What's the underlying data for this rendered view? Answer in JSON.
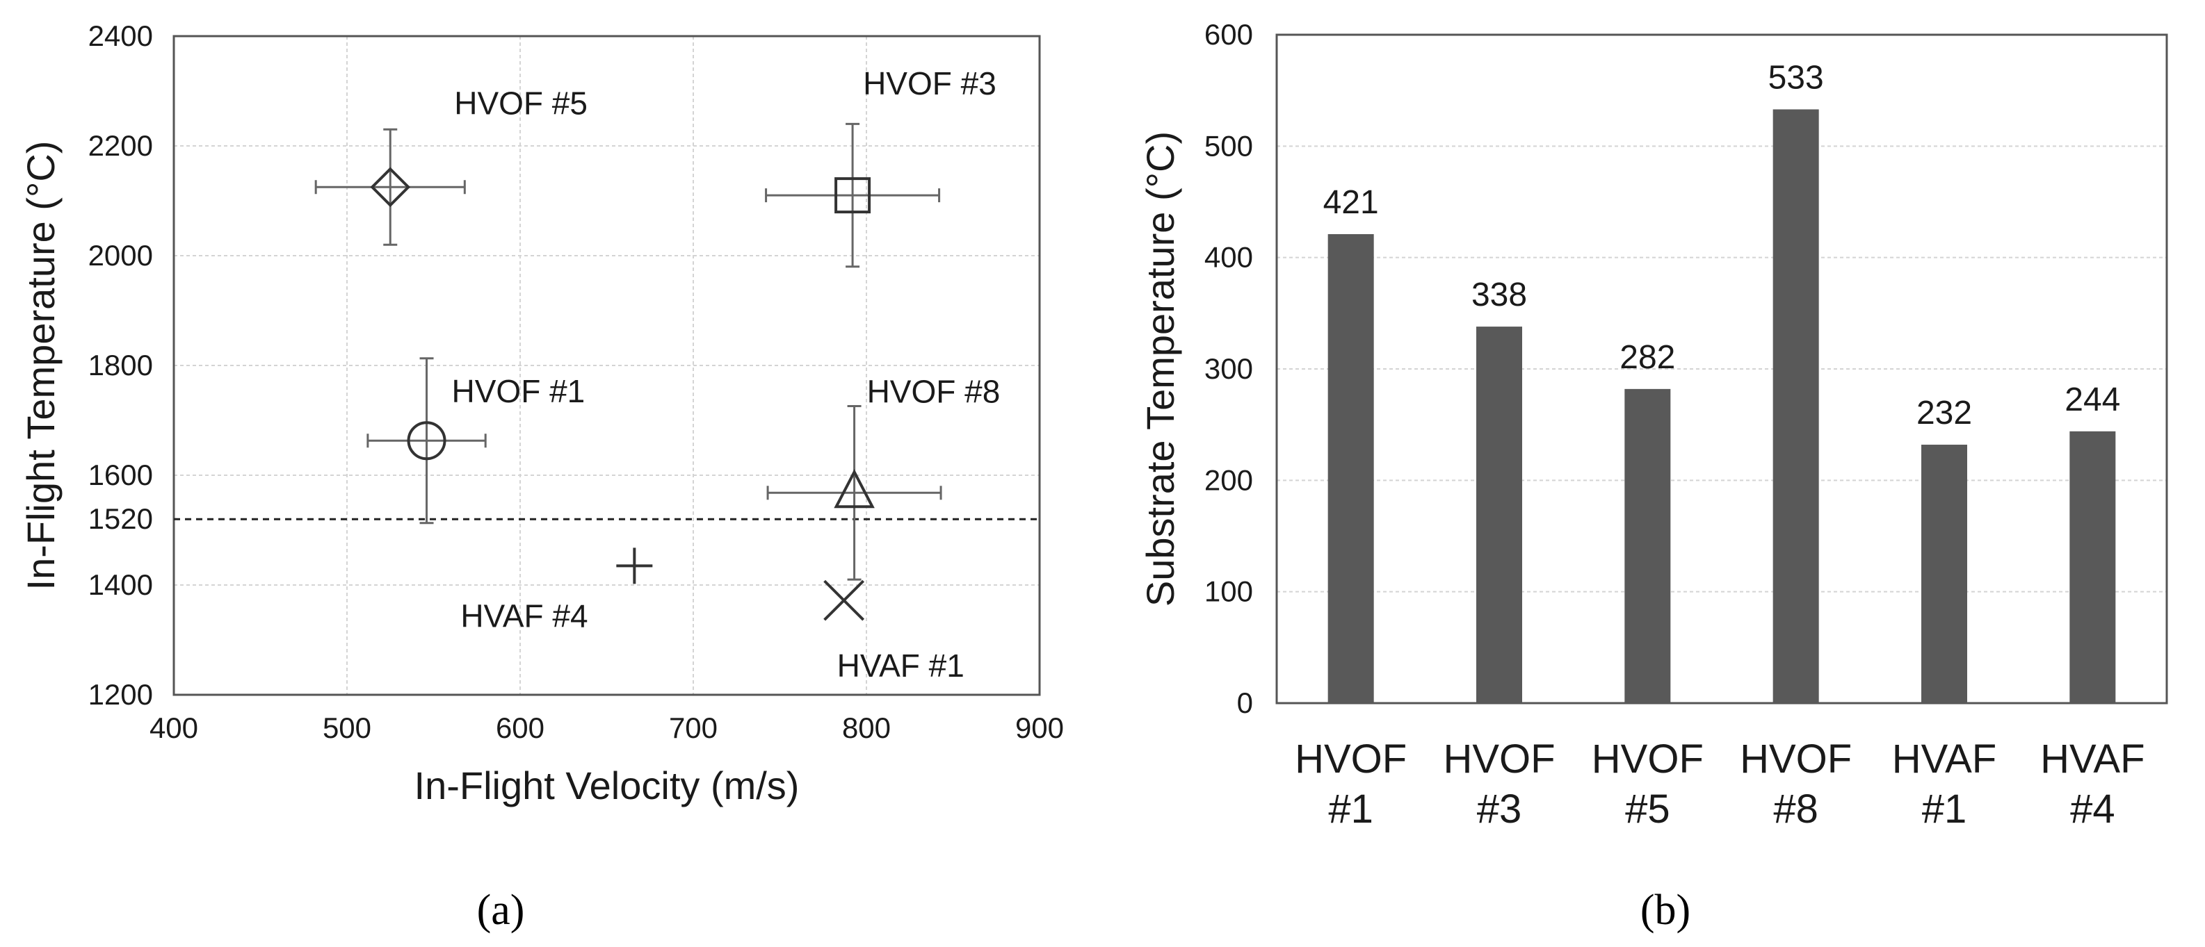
{
  "chart_data": [
    {
      "panel": "(a)",
      "panel_label": "(a)",
      "type": "scatter",
      "xlabel": "In-Flight Velocity (m/s)",
      "ylabel": "In-Flight Temperature (°C)",
      "xlim": [
        400,
        900
      ],
      "ylim": [
        1200,
        2400
      ],
      "xticks": [
        400,
        500,
        600,
        700,
        800,
        900
      ],
      "yticks": [
        1200,
        1400,
        1600,
        1800,
        2000,
        2200,
        2400
      ],
      "grid": true,
      "reference_line": {
        "y": 1520,
        "label": "1520",
        "style": "dashed"
      },
      "points": [
        {
          "name": "HVOF #5",
          "label": "HVOF #5",
          "marker": "diamond",
          "x": 525,
          "y": 2125,
          "xerr": 43,
          "yerr": 105
        },
        {
          "name": "HVOF #3",
          "label": "HVOF #3",
          "marker": "square",
          "x": 792,
          "y": 2110,
          "xerr": 50,
          "yerr": 130
        },
        {
          "name": "HVOF #1",
          "label": "HVOF #1",
          "marker": "circle",
          "x": 546,
          "y": 1663,
          "xerr": 34,
          "yerr": 150
        },
        {
          "name": "HVOF #8",
          "label": "HVOF #8",
          "marker": "triangle",
          "x": 793,
          "y": 1568,
          "xerr": 50,
          "yerr": 158
        },
        {
          "name": "HVAF #4",
          "label": "HVAF #4",
          "marker": "plus",
          "x": 666,
          "y": 1435
        },
        {
          "name": "HVAF #1",
          "label": "HVAF #1",
          "marker": "cross",
          "x": 787,
          "y": 1372
        }
      ]
    },
    {
      "panel": "(b)",
      "panel_label": "(b)",
      "type": "bar",
      "ylabel": "Substrate Temperature (°C)",
      "ylim": [
        0,
        600
      ],
      "yticks": [
        0,
        100,
        200,
        300,
        400,
        500,
        600
      ],
      "categories": [
        [
          "HVOF",
          "#1"
        ],
        [
          "HVOF",
          "#3"
        ],
        [
          "HVOF",
          "#5"
        ],
        [
          "HVOF",
          "#8"
        ],
        [
          "HVAF",
          "#1"
        ],
        [
          "HVAF",
          "#4"
        ]
      ],
      "values": [
        421,
        338,
        282,
        533,
        232,
        244
      ],
      "colors": {
        "bar": "#595959"
      }
    }
  ]
}
